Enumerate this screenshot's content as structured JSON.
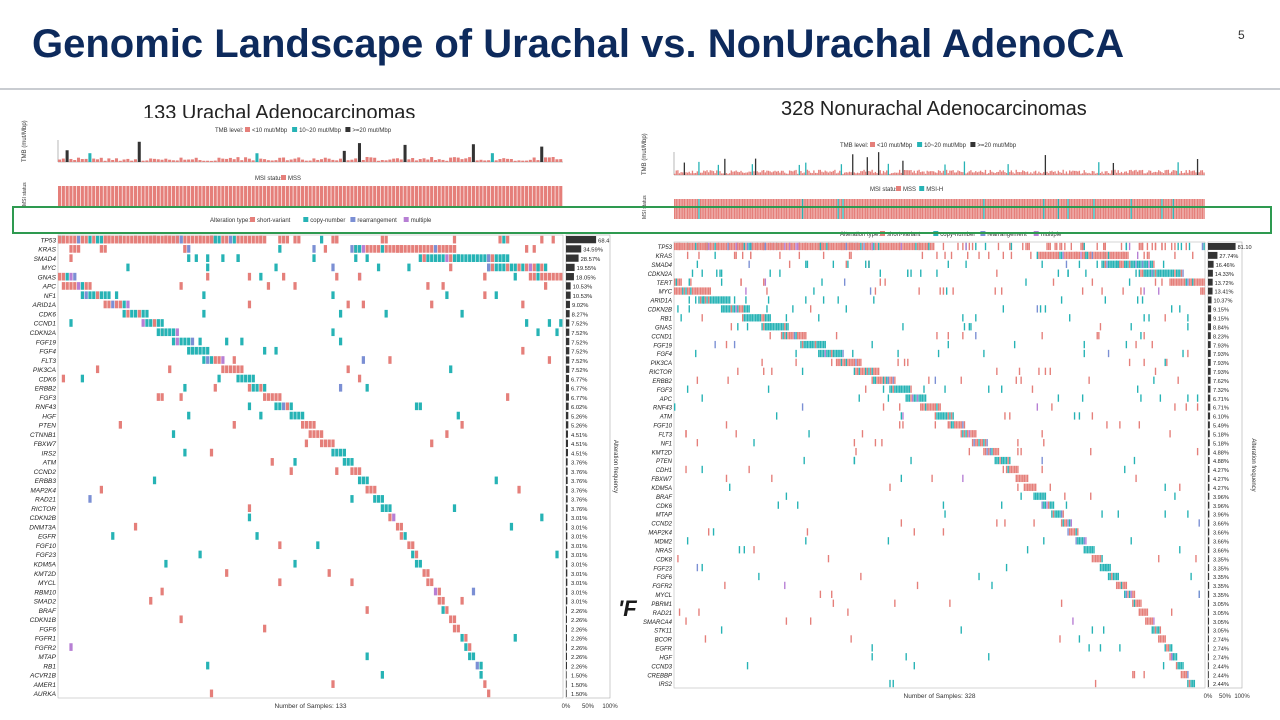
{
  "slide": {
    "title": "Genomic Landscape of Urachal  vs. NonUrachal AdenoCA",
    "number": "5",
    "stray_glyph": "'F"
  },
  "colors": {
    "title": "#0d2a5c",
    "short_variant": "#e57f7a",
    "copy_number": "#26b3b5",
    "rearrangement": "#7b8fd4",
    "multiple": "#b77fd4",
    "tmb_high": "#333333",
    "highlight_box": "#2e9a50"
  },
  "chart_data": [
    {
      "type": "heatmap",
      "title": "133 Urachal Adenocarcinomas",
      "tmb": {
        "ylabel": "TMB (mut/Mbp)",
        "legend_label": "TMB level:",
        "levels": [
          "<10 mut/Mbp",
          "10~20 mut/Mbp",
          ">=20 mut/Mbp"
        ]
      },
      "msi": {
        "label": "MSI status:",
        "ylabel": "MSI status",
        "categories": [
          "MSS"
        ]
      },
      "alteration_legend": {
        "label": "Alteration type:",
        "types": [
          "short-variant",
          "copy-number",
          "rearrangement",
          "multiple"
        ]
      },
      "xlabel": "Number of Samples: 133",
      "freq_axis_label": "Alteration frequency",
      "freq_ticks": [
        "0%",
        "50%",
        "100%"
      ],
      "genes": [
        "TP53",
        "KRAS",
        "SMAD4",
        "MYC",
        "GNAS",
        "APC",
        "NF1",
        "ARID1A",
        "CDK6",
        "CCND1",
        "CDKN2A",
        "FGF19",
        "FGF4",
        "FLT3",
        "PIK3CA",
        "CDK6",
        "ERBB2",
        "FGF3",
        "RNF43",
        "HGF",
        "PTEN",
        "CTNNB1",
        "FBXW7",
        "IRS2",
        "ATM",
        "CCND2",
        "ERBB3",
        "MAP2K4",
        "RAD21",
        "RICTOR",
        "CDKN2B",
        "DNMT3A",
        "EGFR",
        "FGF10",
        "FGF23",
        "KDM5A",
        "KMT2D",
        "MYCL",
        "RBM10",
        "SMAD2",
        "BRAF",
        "CDKN1B",
        "FGF6",
        "FGFR1",
        "FGFR2",
        "MTAP",
        "RB1",
        "ACVR1B",
        "AMER1",
        "AURKA"
      ],
      "frequencies": [
        "68.4",
        "34.59%",
        "28.57%",
        "19.55%",
        "18.05%",
        "10.53%",
        "10.53%",
        "9.02%",
        "8.27%",
        "7.52%",
        "7.52%",
        "7.52%",
        "7.52%",
        "7.52%",
        "7.52%",
        "6.77%",
        "6.77%",
        "6.77%",
        "6.02%",
        "5.26%",
        "5.26%",
        "4.51%",
        "4.51%",
        "4.51%",
        "3.76%",
        "3.76%",
        "3.76%",
        "3.76%",
        "3.76%",
        "3.76%",
        "3.01%",
        "3.01%",
        "3.01%",
        "3.01%",
        "3.01%",
        "3.01%",
        "3.01%",
        "3.01%",
        "3.01%",
        "3.01%",
        "2.26%",
        "2.26%",
        "2.26%",
        "2.26%",
        "2.26%",
        "2.26%",
        "2.26%",
        "1.50%",
        "1.50%",
        "1.50%"
      ]
    },
    {
      "type": "heatmap",
      "title": "328 Nonurachal Adenocarcinomas",
      "tmb": {
        "ylabel": "TMB (mut/Mbp)",
        "legend_label": "TMB level:",
        "levels": [
          "<10 mut/Mbp",
          "10~20 mut/Mbp",
          ">=20 mut/Mbp"
        ]
      },
      "msi": {
        "label": "MSI status:",
        "ylabel": "MSI status",
        "categories": [
          "MSS",
          "MSI-H"
        ]
      },
      "alteration_legend": {
        "label": "Alteration type:",
        "types": [
          "short-variant",
          "copy-number",
          "rearrangement",
          "multiple"
        ]
      },
      "xlabel": "Number of Samples: 328",
      "freq_axis_label": "Alteration frequency",
      "freq_ticks": [
        "0%",
        "50%",
        "100%"
      ],
      "genes": [
        "TP53",
        "KRAS",
        "SMAD4",
        "CDKN2A",
        "TERT",
        "MYC",
        "ARID1A",
        "CDKN2B",
        "RB1",
        "GNAS",
        "CCND1",
        "FGF19",
        "FGF4",
        "PIK3CA",
        "RICTOR",
        "ERBB2",
        "FGF3",
        "APC",
        "RNF43",
        "ATM",
        "FGF10",
        "FLT3",
        "NF1",
        "KMT2D",
        "PTEN",
        "CDH1",
        "FBXW7",
        "KDM5A",
        "BRAF",
        "CDK6",
        "MTAP",
        "CCND2",
        "MAP2K4",
        "MDM2",
        "NRAS",
        "CDK8",
        "FGF23",
        "FGF6",
        "FGFR2",
        "MYCL",
        "PBRM1",
        "RAD21",
        "SMARCA4",
        "STK11",
        "BCOR",
        "EGFR",
        "HGF",
        "CCND3",
        "CREBBP",
        "IRS2"
      ],
      "frequencies": [
        "81.10",
        "27.74%",
        "16.46%",
        "14.33%",
        "13.72%",
        "13.41%",
        "10.37%",
        "9.15%",
        "9.15%",
        "8.84%",
        "8.23%",
        "7.93%",
        "7.93%",
        "7.93%",
        "7.93%",
        "7.62%",
        "7.32%",
        "6.71%",
        "6.71%",
        "6.10%",
        "5.49%",
        "5.18%",
        "5.18%",
        "4.88%",
        "4.88%",
        "4.27%",
        "4.27%",
        "4.27%",
        "3.96%",
        "3.96%",
        "3.96%",
        "3.66%",
        "3.66%",
        "3.66%",
        "3.66%",
        "3.35%",
        "3.35%",
        "3.35%",
        "3.35%",
        "3.35%",
        "3.05%",
        "3.05%",
        "3.05%",
        "3.05%",
        "2.74%",
        "2.74%",
        "2.74%",
        "2.44%",
        "2.44%",
        "2.44%"
      ]
    }
  ]
}
